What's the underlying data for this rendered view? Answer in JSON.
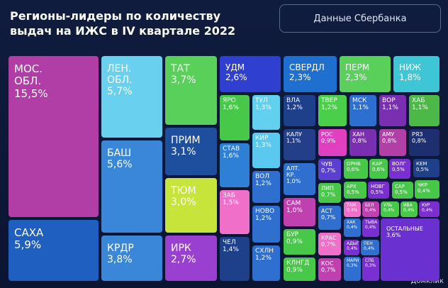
{
  "chart_data": {
    "type": "treemap",
    "title": "Регионы-лидеры по количеству выдач на ИЖС в IV квартале 2022",
    "source": "Данные Сбербанка",
    "brand": "Домклик",
    "categories": [
      "МОС. ОБЛ.",
      "САХА",
      "ЛЕН. ОБЛ.",
      "БАШ",
      "КРДР",
      "ТАТ",
      "ПРИМ",
      "ТЮМ",
      "ИРК",
      "УДМ",
      "СВЕРДЛ",
      "ПЕРМ",
      "НИЖ",
      "ЯРО",
      "ТУЛ",
      "ВЛА",
      "ТВЕР",
      "МСК",
      "ВОР",
      "ХАБ",
      "СТАВ",
      "КИР",
      "КАЛУ",
      "РОС",
      "ХАН",
      "АМУ",
      "РЯЗ",
      "ВОЛ",
      "ЗАБ",
      "АЛТ. КР.",
      "ЧУВ",
      "ОРНБ",
      "КАР",
      "ВОЛГ",
      "КЕМ",
      "ЛИП",
      "АРХ",
      "НОВГ",
      "САР",
      "ЧКР",
      "АСТ",
      "ТАМ",
      "БЕЛ",
      "УЛЬ",
      "ИВА",
      "КУР",
      "ХАК",
      "ТЫВА",
      "ОСТАЛЬНЫЕ",
      "КРАС",
      "АДЫГ",
      "ПЕН",
      "КОС",
      "МАРИ",
      "СПБ",
      "НОВО",
      "СХЛН",
      "ЧЕЛ",
      "САМ",
      "БУР",
      "КЛНГД"
    ],
    "values": [
      15.5,
      5.9,
      5.7,
      5.6,
      3.8,
      3.7,
      3.1,
      3.0,
      2.7,
      2.6,
      2.3,
      2.3,
      1.8,
      1.6,
      1.3,
      1.2,
      1.2,
      1.1,
      1.1,
      1.1,
      1.6,
      1.3,
      1.1,
      0.9,
      0.8,
      0.8,
      0.8,
      1.2,
      1.5,
      1.0,
      0.7,
      0.6,
      0.6,
      0.5,
      0.5,
      0.7,
      0.5,
      0.5,
      0.5,
      0.4,
      0.7,
      0.4,
      0.4,
      0.4,
      0.4,
      0.4,
      0.4,
      0.4,
      3.6,
      0.7,
      0.4,
      0.4,
      0.7,
      0.3,
      0.3,
      1.2,
      1.2,
      1.4,
      1.0,
      0.9,
      0.9
    ],
    "value_labels": [
      "15,5%",
      "5,9%",
      "5,7%",
      "5,6%",
      "3,8%",
      "3,7%",
      "3,1%",
      "3,0%",
      "2,7%",
      "2,6%",
      "2,3%",
      "2,3%",
      "1,8%",
      "1,6%",
      "1,3%",
      "1,2%",
      "1,2%",
      "1,1%",
      "1,1%",
      "1,1%",
      "1,6%",
      "1,3%",
      "1,1%",
      "0,9%",
      "0,8%",
      "0,8%",
      "0,8%",
      "1,2%",
      "1,5%",
      "1,0%",
      "0,7%",
      "0,6%",
      "0,6%",
      "0,5%",
      "0,5%",
      "0,7%",
      "0,5%",
      "0,5%",
      "0,5%",
      "0,4%",
      "0,7%",
      "0,4%",
      "0,4%",
      "0,4%",
      "0,4%",
      "0,4%",
      "0,4%",
      "0,4%",
      "3,6%",
      "0,7%",
      "0,4%",
      "0,4%",
      "0,7%",
      "0,3%",
      "0,3%",
      "1,2%",
      "1,2%",
      "1,4%",
      "1,0%",
      "0,9%",
      "0,9%"
    ],
    "colors": [
      "#b03ea6",
      "#1f5fbf",
      "#6ad0ef",
      "#3a86d8",
      "#3a86d8",
      "#58d05a",
      "#1d4f9e",
      "#c6e43a",
      "#9a40d0",
      "#2f40d0",
      "#1f6fd0",
      "#58d05a",
      "#3ec6d6",
      "#48c848",
      "#63d0ef",
      "#1e3f8a",
      "#4bcf4b",
      "#2d6fd0",
      "#7a2fb0",
      "#4cb848",
      "#2e7fd6",
      "#5ac8ef",
      "#243f8a",
      "#e040c0",
      "#7a2fb0",
      "#b23fa5",
      "#1e2f70",
      "#2e6fd0",
      "#f06fc8",
      "#2e6fd0",
      "#5a3fd0",
      "#48c848",
      "#48c848",
      "#7a30d0",
      "#1e3f8a",
      "#48c848",
      "#48c848",
      "#7a30d0",
      "#48c848",
      "#48c848",
      "#2e6fd0",
      "#f06fc8",
      "#c040b0",
      "#48c848",
      "#48c848",
      "#7a30d0",
      "#2e6fd0",
      "#7a30d0",
      "#6a30d0",
      "#f06fc8",
      "#7a30d0",
      "#2e6fd0",
      "#c040b0",
      "#2e6fd0",
      "#7a30d0",
      "#2e6fd0",
      "#2e6fd0",
      "#1e3f8a",
      "#c040b0",
      "#48c848",
      "#48c848"
    ]
  }
}
